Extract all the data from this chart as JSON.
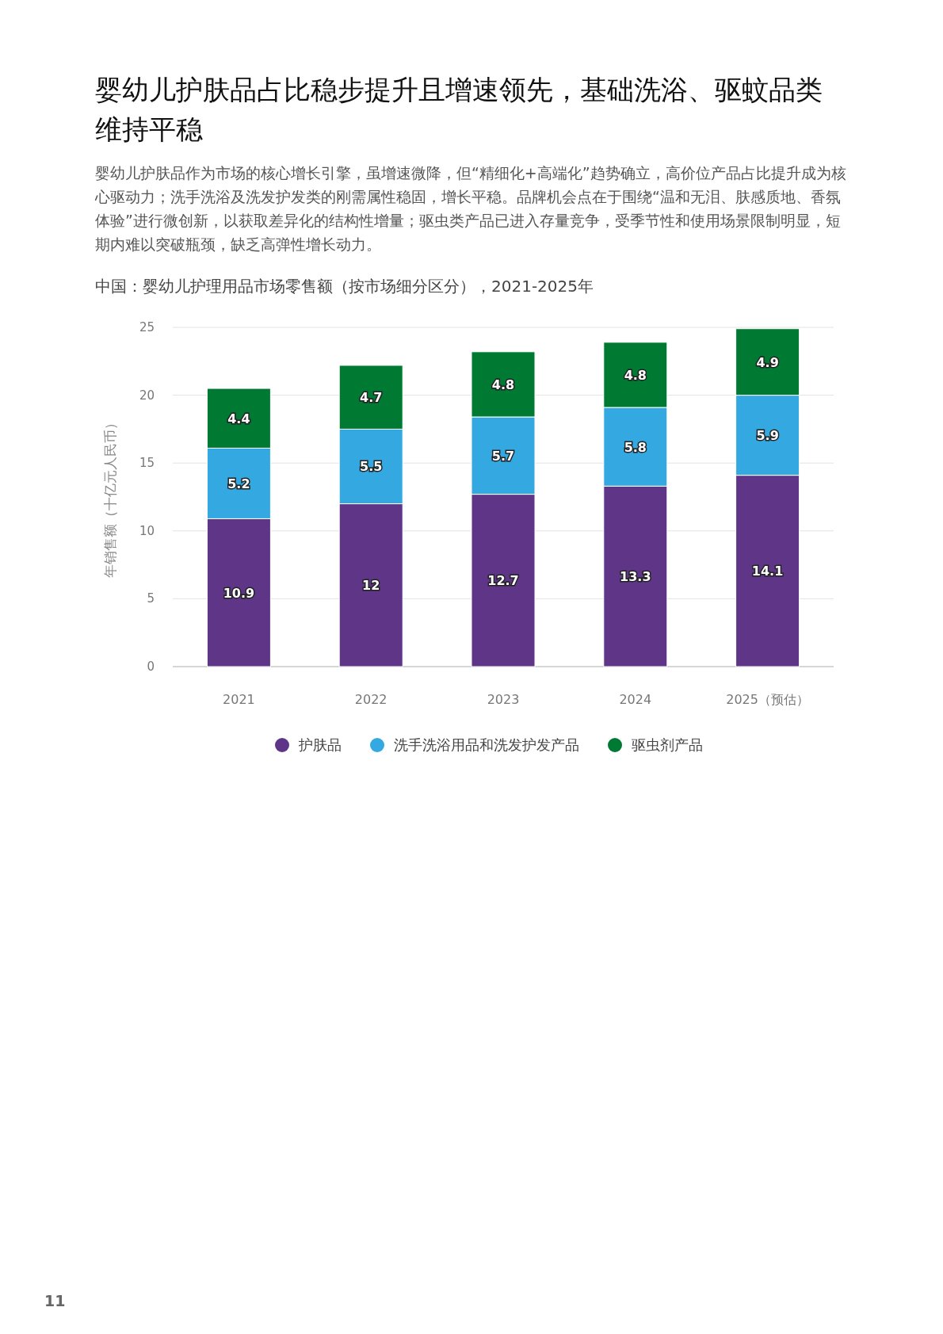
{
  "chart_data": {
    "type": "bar",
    "title": "婴幼儿护肤品占比稳步提升且增速领先，基础洗浴、驱蚊品类维持平稳",
    "subtitle": "婴幼儿护肤品作为市场的核心增长引擎，虽增速微降，但“精细化+高端化”趋势确立，高价位产品占比提升成为核心驱动力；洗手洗浴及洗发护发类的刚需属性稳固，增长平稳。品牌机会点在于围绕“温和无泪、肤感质地、香氛体验”进行微创新，以获取差异化的结构性增量；驱虫类产品已进入存量竞争，受季节性和使用场景限制明显，短期内难以突破瓶颈，缺乏高弹性增长动力。",
    "annotations": [
      "中国：婴幼儿护理用品市场零售额（按市场细分区分），2021-2025年",
      "11"
    ],
    "ylabel": "年销售额（十亿元人民币）",
    "categories": [
      "2021",
      "2022",
      "2023",
      "2024",
      "2025（预估）"
    ],
    "series": [
      {
        "name": "护肤品",
        "color": "#5e3587",
        "values": [
          10.9,
          12,
          12.7,
          13.3,
          14.1
        ]
      },
      {
        "name": "洗手洗浴用品和洗发护发产品",
        "color": "#34a8e0",
        "values": [
          5.2,
          5.5,
          5.7,
          5.8,
          5.9
        ]
      },
      {
        "name": "驱虫剂产品",
        "color": "#007a33",
        "values": [
          4.4,
          4.7,
          4.8,
          4.8,
          4.9
        ]
      }
    ],
    "stacked": true,
    "ylim": [
      0,
      25
    ],
    "yticks": [
      0,
      5,
      10,
      15,
      20,
      25
    ],
    "grid": "y",
    "legend": "bottom",
    "data_labels": true
  }
}
